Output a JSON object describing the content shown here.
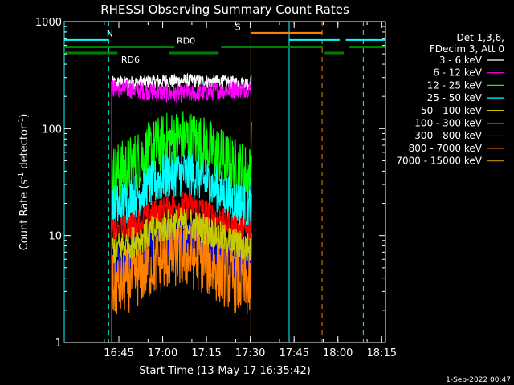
{
  "chart_data": {
    "type": "line",
    "title": "RHESSI Observing Summary Count Rates",
    "xlabel": "Start Time (13-May-17 16:35:42)",
    "ylabel_parts": [
      "Count Rate (s",
      "-1",
      " detector",
      "-1",
      ")"
    ],
    "ylog": true,
    "ylim": [
      1,
      1000
    ],
    "xlim_minutes": [
      -8.7,
      101.3
    ],
    "x_ticks": [
      {
        "minute": 10,
        "label": "16:45"
      },
      {
        "minute": 25,
        "label": "17:00"
      },
      {
        "minute": 40,
        "label": "17:15"
      },
      {
        "minute": 55,
        "label": "17:30"
      },
      {
        "minute": 70,
        "label": "17:45"
      },
      {
        "minute": 85,
        "label": "18:00"
      },
      {
        "minute": 100,
        "label": "18:15"
      }
    ],
    "y_ticks": [
      {
        "value": 1,
        "label": "1"
      },
      {
        "value": 10,
        "label": "10"
      },
      {
        "value": 100,
        "label": "100"
      },
      {
        "value": 1000,
        "label": "1000"
      }
    ],
    "legend_header": [
      "Det 1,3,6,",
      "FDecim 3, Att 0"
    ],
    "data_window": [
      7.6,
      55.2
    ],
    "series": [
      {
        "name": "3 - 6 keV",
        "color": "#ffffff",
        "peak": 280,
        "edge": 265,
        "noise": 0.03
      },
      {
        "name": "6 - 12 keV",
        "color": "#ff00ff",
        "peak": 210,
        "edge": 240,
        "noise": 0.04
      },
      {
        "name": "12 - 25 keV",
        "color": "#00ff00",
        "peak": 80,
        "edge": 33,
        "noise": 0.13
      },
      {
        "name": "25 - 50 keV",
        "color": "#00ffff",
        "peak": 38,
        "edge": 16,
        "noise": 0.1
      },
      {
        "name": "50 - 100 keV",
        "color": "#ffff00",
        "peak": 0,
        "edge": 0,
        "noise": 0
      },
      {
        "name": "100 - 300 keV",
        "color": "#ff0000",
        "peak": 19,
        "edge": 10,
        "noise": 0.06
      },
      {
        "name": "300 - 800 keV",
        "color": "#0000ff",
        "peak": 9.5,
        "edge": 5,
        "noise": 0.08
      },
      {
        "name": "800 - 7000 keV",
        "color": "#ff8000",
        "peak": 6.5,
        "edge": 3,
        "noise": 0.14
      },
      {
        "name": "7000 - 15000 keV",
        "color": "#b08000",
        "peak": 0,
        "edge": 0,
        "noise": 0
      }
    ],
    "extra_series": [
      {
        "color": "#c8c800",
        "peak": 13,
        "edge": 7,
        "noise": 0.07
      }
    ],
    "flags": [
      {
        "label": "N",
        "color": "#00ffff",
        "y_value": 680,
        "segments": [
          [
            -8.7,
            6.5
          ],
          [
            68.3,
            85.6
          ],
          [
            87.7,
            101.3
          ]
        ],
        "label_minute": 5.8
      },
      {
        "label": "S",
        "color": "#ff8000",
        "y_value": 780,
        "segments": [
          [
            55.4,
            79.6
          ]
        ],
        "label_minute": 49.8
      },
      {
        "label": "RD0",
        "color": "#008000",
        "y_value": 580,
        "segments": [
          [
            -8.7,
            29.0
          ],
          [
            45.0,
            79.8
          ],
          [
            89.0,
            101.3
          ]
        ],
        "label_minute": 29.8
      },
      {
        "label": "RD6",
        "color": "#008000",
        "y_value": 510,
        "segments": [
          [
            -8.7,
            9.5
          ],
          [
            27.3,
            44.2
          ],
          [
            80.5,
            87.0
          ]
        ],
        "label_minute": 10.8
      }
    ],
    "vlines": [
      {
        "minute": -8.7,
        "color": "#00ffff",
        "dashed": false
      },
      {
        "minute": 6.5,
        "color": "#00ffff",
        "dashed": true
      },
      {
        "minute": 55.2,
        "color": "#ff8000",
        "dashed": false
      },
      {
        "minute": 68.3,
        "color": "#00ffff",
        "dashed": false
      },
      {
        "minute": 79.6,
        "color": "#ff8000",
        "dashed": true
      },
      {
        "minute": 93.7,
        "color": "#00ffff",
        "dashed": true
      }
    ]
  },
  "timestamp": "1-Sep-2022 00:47"
}
